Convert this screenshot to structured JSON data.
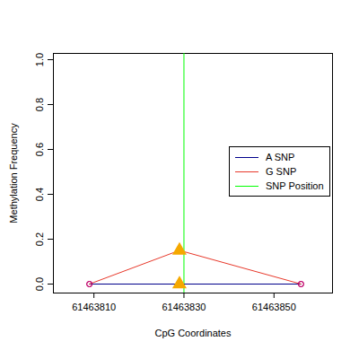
{
  "chart_data": {
    "type": "line",
    "xlabel": "CpG Coordinates",
    "ylabel": "Methylation Frequency",
    "x": [
      61463809,
      61463829,
      61463856
    ],
    "series": [
      {
        "name": "A SNP",
        "color": "#00008b",
        "values": [
          0,
          0,
          0
        ]
      },
      {
        "name": "G SNP",
        "color": "#e8392b",
        "values": [
          0,
          0.15,
          0
        ]
      }
    ],
    "snp": {
      "name": "SNP Position",
      "color": "#00ff00",
      "x": 61463830
    },
    "marker": "circle",
    "line_style": "solid",
    "xlim": [
      61463801,
      61463863
    ],
    "ylim": [
      -0.04,
      1.028
    ],
    "xticks": [
      61463810,
      61463830,
      61463850
    ],
    "yticks": [
      {
        "value": 0,
        "label": "0.0"
      },
      {
        "value": 0.2,
        "label": "0.2"
      },
      {
        "value": 0.4,
        "label": "0.4"
      },
      {
        "value": 0.6,
        "label": "0.6"
      },
      {
        "value": 0.8,
        "label": "0.8"
      },
      {
        "value": 1,
        "label": "1.0"
      }
    ],
    "legend": "right",
    "grid": false
  }
}
